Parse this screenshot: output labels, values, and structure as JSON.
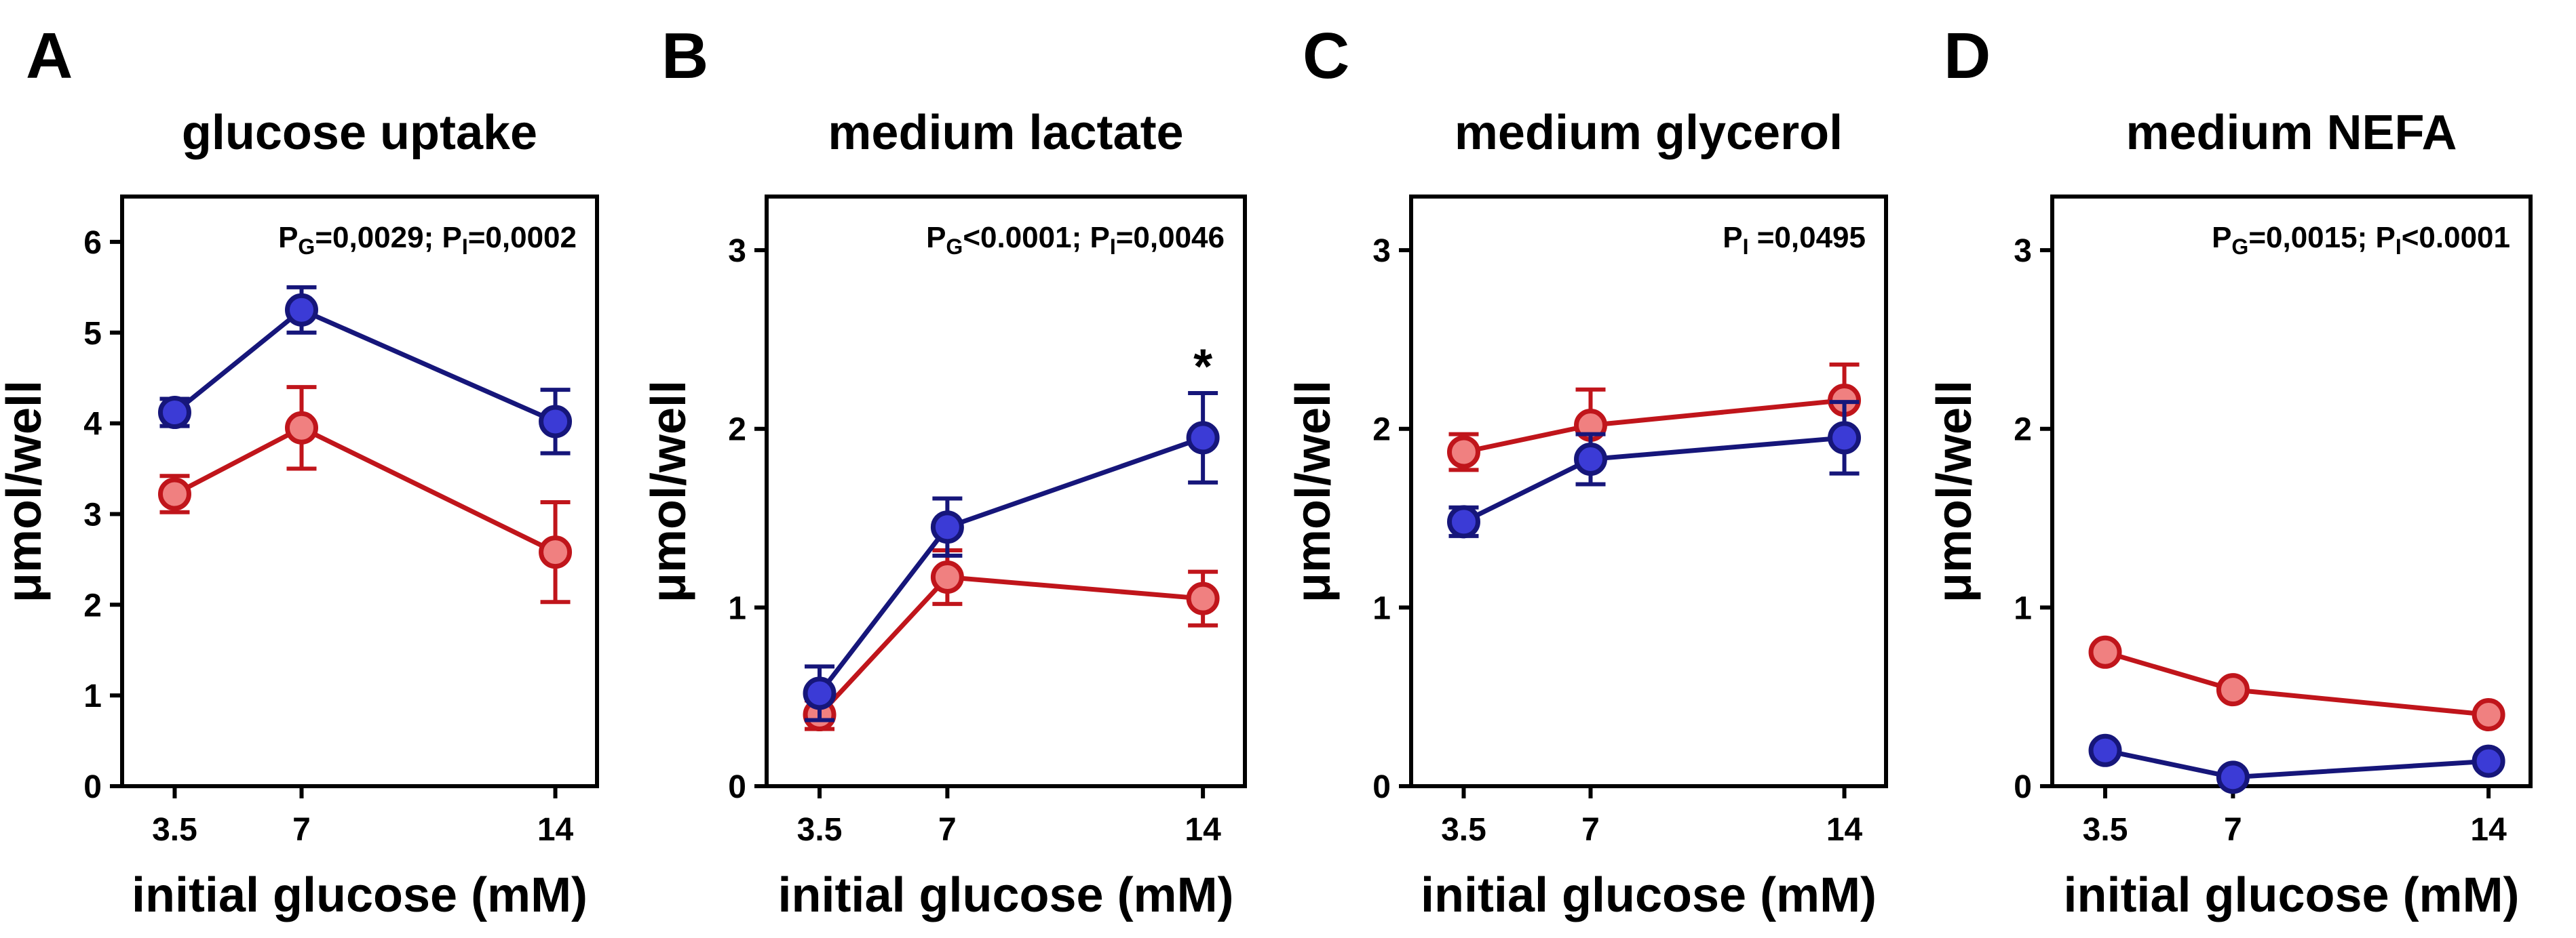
{
  "colors": {
    "series_red": "#c0151b",
    "fill_red": "#f08080",
    "series_blue": "#16167a",
    "fill_blue": "#3b3bd6"
  },
  "chart_data": [
    {
      "type": "line",
      "letter": "A",
      "title": "glucose uptake",
      "xlabel": "initial glucose (mM)",
      "ylabel": "μmol/well",
      "x": [
        3.5,
        7,
        14
      ],
      "xticks": [
        "3.5",
        "7",
        "14"
      ],
      "ylim": [
        0,
        6.5
      ],
      "yticks": [
        0,
        1,
        2,
        3,
        4,
        5,
        6
      ],
      "stats": [
        {
          "p": "P",
          "sub": "G",
          "rest": "=0,0029; "
        },
        {
          "p": "P",
          "sub": "I",
          "rest": "=0,0002"
        }
      ],
      "series": [
        {
          "color": "red",
          "values": [
            3.22,
            3.95,
            2.58
          ],
          "err": [
            0.2,
            0.45,
            0.55
          ]
        },
        {
          "color": "blue",
          "values": [
            4.12,
            5.25,
            4.02
          ],
          "err": [
            0.15,
            0.25,
            0.35
          ]
        }
      ],
      "annotations": []
    },
    {
      "type": "line",
      "letter": "B",
      "title": "medium lactate",
      "xlabel": "initial glucose (mM)",
      "ylabel": "μmol/well",
      "x": [
        3.5,
        7,
        14
      ],
      "xticks": [
        "3.5",
        "7",
        "14"
      ],
      "ylim": [
        0,
        3.3
      ],
      "yticks": [
        0,
        1,
        2,
        3
      ],
      "stats": [
        {
          "p": "P",
          "sub": "G",
          "rest": "<0.0001; "
        },
        {
          "p": "P",
          "sub": "I",
          "rest": "=0,0046"
        }
      ],
      "series": [
        {
          "color": "red",
          "values": [
            0.4,
            1.17,
            1.05
          ],
          "err": [
            0.08,
            0.15,
            0.15
          ]
        },
        {
          "color": "blue",
          "values": [
            0.52,
            1.45,
            1.95
          ],
          "err": [
            0.15,
            0.16,
            0.25
          ]
        }
      ],
      "annotations": [
        {
          "text": "*",
          "x": 14,
          "y": 2.33
        }
      ]
    },
    {
      "type": "line",
      "letter": "C",
      "title": "medium glycerol",
      "xlabel": "initial glucose (mM)",
      "ylabel": "μmol/well",
      "x": [
        3.5,
        7,
        14
      ],
      "xticks": [
        "3.5",
        "7",
        "14"
      ],
      "ylim": [
        0,
        3.3
      ],
      "yticks": [
        0,
        1,
        2,
        3
      ],
      "stats": [
        {
          "p": "P",
          "sub": "I",
          "rest": " =0,0495"
        }
      ],
      "series": [
        {
          "color": "red",
          "values": [
            1.87,
            2.02,
            2.16
          ],
          "err": [
            0.1,
            0.2,
            0.2
          ]
        },
        {
          "color": "blue",
          "values": [
            1.48,
            1.83,
            1.95
          ],
          "err": [
            0.08,
            0.14,
            0.2
          ]
        }
      ],
      "annotations": []
    },
    {
      "type": "line",
      "letter": "D",
      "title": "medium NEFA",
      "xlabel": "initial glucose (mM)",
      "ylabel": "μmol/well",
      "x": [
        3.5,
        7,
        14
      ],
      "xticks": [
        "3.5",
        "7",
        "14"
      ],
      "ylim": [
        0,
        3.3
      ],
      "yticks": [
        0,
        1,
        2,
        3
      ],
      "stats": [
        {
          "p": "P",
          "sub": "G",
          "rest": "=0,0015; "
        },
        {
          "p": "P",
          "sub": "I",
          "rest": "<0.0001"
        }
      ],
      "series": [
        {
          "color": "red",
          "values": [
            0.75,
            0.54,
            0.4
          ],
          "err": [
            0.03,
            0.03,
            0.03
          ]
        },
        {
          "color": "blue",
          "values": [
            0.2,
            0.05,
            0.14
          ],
          "err": [
            0.03,
            0.03,
            0.03
          ]
        }
      ],
      "annotations": []
    }
  ]
}
